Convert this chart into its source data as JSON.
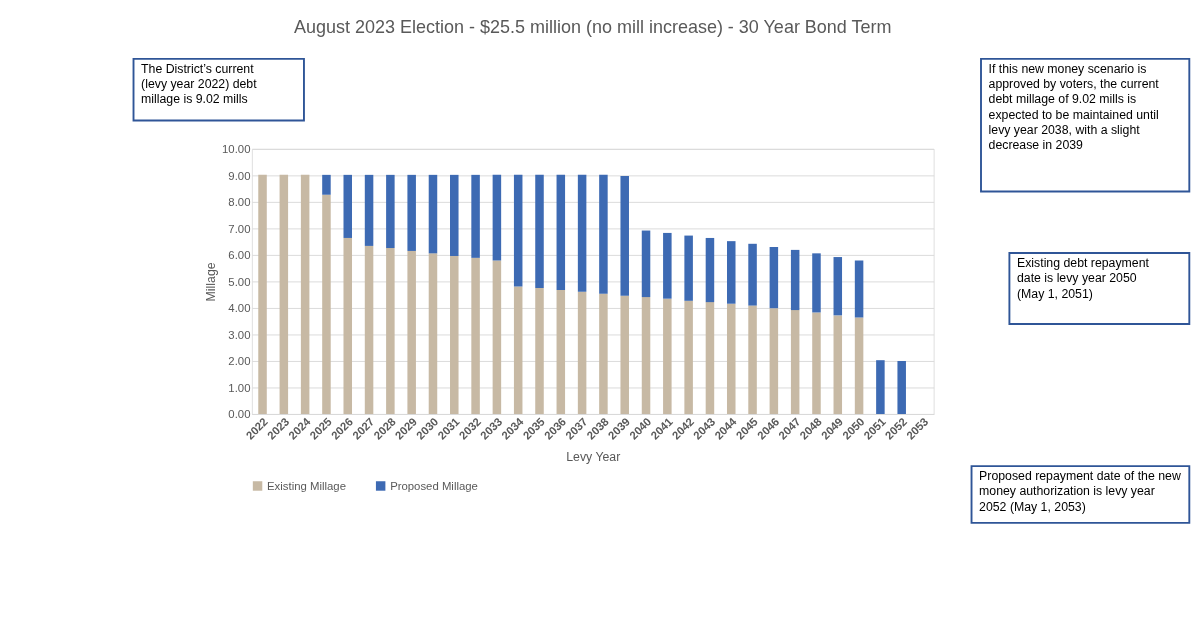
{
  "chart_data": {
    "type": "bar",
    "stacked": true,
    "title": "August 2023 Election - $25.5 million (no mill increase) - 30 Year Bond Term",
    "xlabel": "Levy Year",
    "ylabel": "Millage",
    "categories": [
      "2022",
      "2023",
      "2024",
      "2025",
      "2026",
      "2027",
      "2028",
      "2029",
      "2030",
      "2031",
      "2032",
      "2033",
      "2034",
      "2035",
      "2036",
      "2037",
      "2038",
      "2039",
      "2040",
      "2041",
      "2042",
      "2043",
      "2044",
      "2045",
      "2046",
      "2047",
      "2048",
      "2049",
      "2050",
      "2051",
      "2052",
      "2053"
    ],
    "series": [
      {
        "name": "Existing Millage",
        "color": "#c7b9a4",
        "values": [
          9.02,
          9.02,
          9.02,
          8.27,
          6.64,
          6.34,
          6.26,
          6.15,
          6.06,
          5.96,
          5.89,
          5.79,
          4.81,
          4.75,
          4.68,
          4.61,
          4.54,
          4.46,
          4.41,
          4.35,
          4.27,
          4.22,
          4.16,
          4.09,
          3.99,
          3.92,
          3.83,
          3.72,
          3.64,
          null,
          null,
          null
        ]
      },
      {
        "name": "Proposed Millage",
        "color": "#3d6ab3",
        "values": [
          null,
          null,
          null,
          0.75,
          2.38,
          2.68,
          2.76,
          2.87,
          2.96,
          3.06,
          3.13,
          3.23,
          4.21,
          4.27,
          4.34,
          4.41,
          4.48,
          4.52,
          2.51,
          2.48,
          2.46,
          2.42,
          2.36,
          2.33,
          2.31,
          2.27,
          2.23,
          2.2,
          2.15,
          2.03,
          2.0,
          null
        ]
      }
    ],
    "ylim": [
      0,
      10
    ],
    "yticks": [
      {
        "value": 0,
        "label": "0.00"
      },
      {
        "value": 1,
        "label": "1.00"
      },
      {
        "value": 2,
        "label": "2.00"
      },
      {
        "value": 3,
        "label": "3.00"
      },
      {
        "value": 4,
        "label": "4.00"
      },
      {
        "value": 5,
        "label": "5.00"
      },
      {
        "value": 6,
        "label": "6.00"
      },
      {
        "value": 7,
        "label": "7.00"
      },
      {
        "value": 8,
        "label": "8.00"
      },
      {
        "value": 9,
        "label": "9.00"
      },
      {
        "value": 10,
        "label": "10.00"
      }
    ],
    "grid": "y",
    "legend": "bottom",
    "annotations": [
      "The District’s current (levy year 2022) debt millage is 9.02 mills",
      "If this new money scenario is approved by voters, the current debt millage of 9.02 mills is expected to be maintained until levy year 2038, with a slight decrease in 2039",
      "Existing debt repayment date is levy year 2050 (May 1, 2051)",
      "Proposed repayment date of the new money authorization is levy year 2052 (May 1, 2053)"
    ]
  }
}
